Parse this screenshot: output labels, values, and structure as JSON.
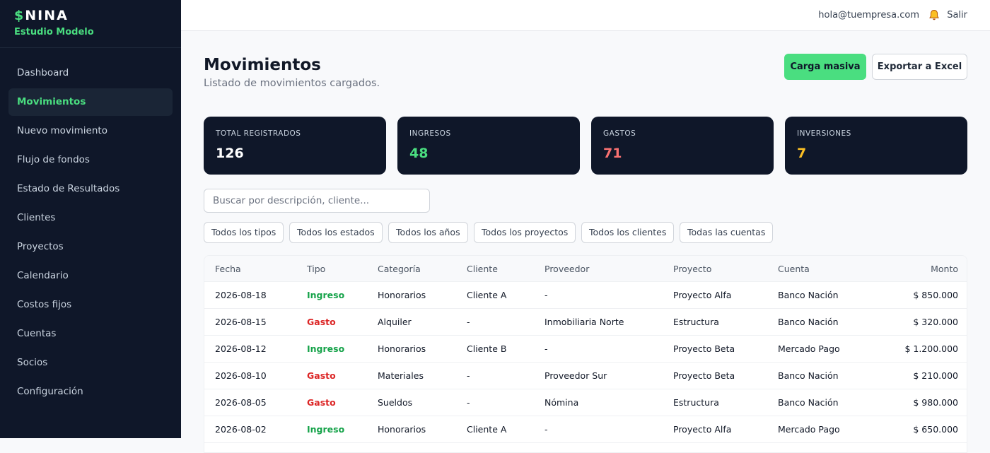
{
  "sidebar": {
    "brand_symbol": "$",
    "brand_name": "NINA",
    "subtitle": "Estudio Modelo",
    "brand_color": "#4ade80",
    "active": 1,
    "nav": [
      "Dashboard",
      "Movimientos",
      "Nuevo movimiento",
      "Flujo de fondos",
      "Estado de Resultados",
      "Clientes",
      "Proyectos",
      "Calendario",
      "Costos fijos",
      "Cuentas",
      "Socios",
      "Configuración"
    ]
  },
  "topbar": {
    "email": "hola@tuempresa.com",
    "logout": "Salir"
  },
  "header": {
    "title": "Movimientos",
    "subtitle": "Listado de movimientos cargados.",
    "primary_button": "Carga masiva",
    "secondary_button": "Exportar a Excel"
  },
  "cards": [
    {
      "label": "TOTAL REGISTRADOS",
      "value": 126,
      "color": "#ffffff"
    },
    {
      "label": "INGRESOS",
      "value": 48,
      "color": "#4ade80"
    },
    {
      "label": "GASTOS",
      "value": 71,
      "color": "#f87171"
    },
    {
      "label": "INVERSIONES",
      "value": 7,
      "color": "#fbbf24"
    }
  ],
  "search": {
    "placeholder": "Buscar por descripción, cliente..."
  },
  "filters": [
    "Todos los tipos",
    "Todos los estados",
    "Todos los años",
    "Todos los proyectos",
    "Todos los clientes",
    "Todas las cuentas"
  ],
  "table": {
    "columns": [
      "Fecha",
      "Tipo",
      "Categoría",
      "Cliente",
      "Proveedor",
      "Proyecto",
      "Cuenta",
      "Monto"
    ],
    "rows": [
      {
        "cells": [
          "2026-08-18",
          "Ingreso",
          "Honorarios",
          "Cliente A",
          "-",
          "Proyecto Alfa",
          "Banco Nación",
          "$ 850.000"
        ],
        "tipo_color": "#16a34a"
      },
      {
        "cells": [
          "2026-08-15",
          "Gasto",
          "Alquiler",
          "-",
          "Inmobiliaria Norte",
          "Estructura",
          "Banco Nación",
          "$ 320.000"
        ],
        "tipo_color": "#dc2626"
      },
      {
        "cells": [
          "2026-08-12",
          "Ingreso",
          "Honorarios",
          "Cliente B",
          "-",
          "Proyecto Beta",
          "Mercado Pago",
          "$ 1.200.000"
        ],
        "tipo_color": "#16a34a"
      },
      {
        "cells": [
          "2026-08-10",
          "Gasto",
          "Materiales",
          "-",
          "Proveedor Sur",
          "Proyecto Beta",
          "Banco Nación",
          "$ 210.000"
        ],
        "tipo_color": "#dc2626"
      },
      {
        "cells": [
          "2026-08-05",
          "Gasto",
          "Sueldos",
          "-",
          "Nómina",
          "Estructura",
          "Banco Nación",
          "$ 980.000"
        ],
        "tipo_color": "#dc2626"
      },
      {
        "cells": [
          "2026-08-02",
          "Ingreso",
          "Honorarios",
          "Cliente A",
          "-",
          "Proyecto Alfa",
          "Mercado Pago",
          "$ 650.000"
        ],
        "tipo_color": "#16a34a"
      }
    ]
  }
}
